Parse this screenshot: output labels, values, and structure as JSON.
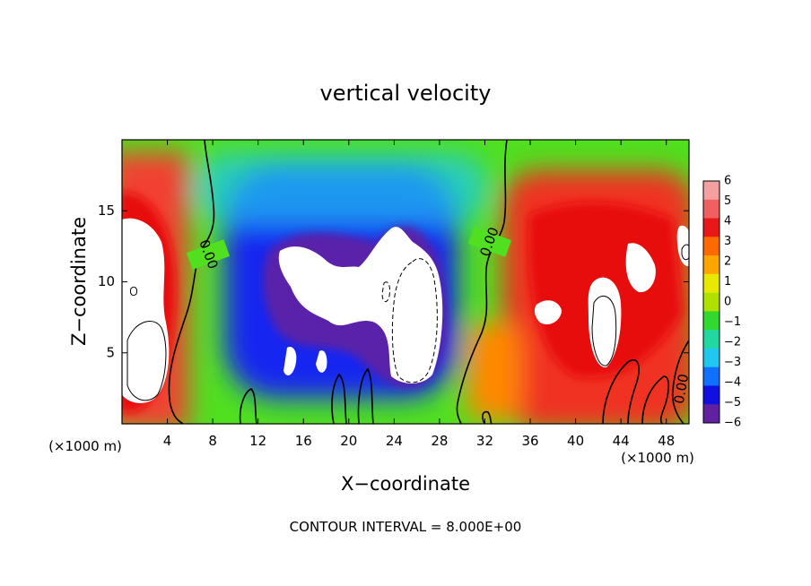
{
  "chart_data": {
    "type": "heatmap",
    "title": "vertical velocity",
    "xlabel": "X−coordinate",
    "ylabel": "Z−coordinate",
    "x_unit_label": "(×1000 m)",
    "y_unit_label": "(×1000 m)",
    "xlim": [
      0,
      50
    ],
    "ylim": [
      0,
      20
    ],
    "x_ticks": [
      4,
      8,
      12,
      16,
      20,
      24,
      28,
      32,
      36,
      40,
      44,
      48
    ],
    "x_tick_labels": [
      "4",
      "8",
      "12",
      "16",
      "20",
      "24",
      "28",
      "32",
      "36",
      "40",
      "44",
      "48"
    ],
    "y_ticks": [
      5,
      10,
      15
    ],
    "y_tick_labels": [
      "5",
      "10",
      "15"
    ],
    "colorbar": {
      "levels": [
        6,
        5,
        4,
        3,
        2,
        1,
        0,
        -1,
        -2,
        -3,
        -4,
        -5,
        -6
      ],
      "labels": [
        "6",
        "5",
        "4",
        "3",
        "2",
        "1",
        "0",
        "−1",
        "−2",
        "−3",
        "−4",
        "−5",
        "−6"
      ],
      "colors": [
        "#f4a0a0",
        "#f06060",
        "#e81818",
        "#ff6a00",
        "#ffa500",
        "#e8e800",
        "#b0e000",
        "#30d830",
        "#20d8a0",
        "#20c8f0",
        "#1070ff",
        "#1010e0",
        "#6020a0"
      ],
      "range": [
        -6,
        6
      ]
    },
    "contour_labels": [
      "0.00",
      "0.00",
      "0.00"
    ],
    "contour_interval_text": "CONTOUR INTERVAL = 8.000E+00",
    "regions": [
      {
        "x": [
          0,
          5
        ],
        "z": [
          0,
          20
        ],
        "value": 4
      },
      {
        "x": [
          0,
          4
        ],
        "z": [
          1,
          14
        ],
        "value": 7
      },
      {
        "x": [
          5,
          8
        ],
        "z": [
          0,
          20
        ],
        "value": 0
      },
      {
        "x": [
          8,
          30
        ],
        "z": [
          1,
          17
        ],
        "value": -4
      },
      {
        "x": [
          14,
          29
        ],
        "z": [
          4,
          12
        ],
        "value": -7
      },
      {
        "x": [
          30,
          34
        ],
        "z": [
          0,
          20
        ],
        "value": 0
      },
      {
        "x": [
          35,
          50
        ],
        "z": [
          0,
          16
        ],
        "value": 4
      },
      {
        "x": [
          39,
          45
        ],
        "z": [
          4,
          11
        ],
        "value": 7
      }
    ]
  }
}
